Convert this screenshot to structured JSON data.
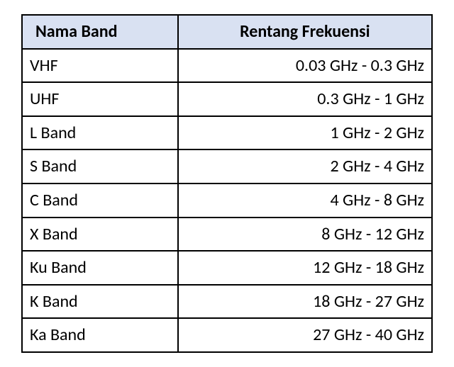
{
  "table": {
    "header_bg_color": "#d9e1f2",
    "border_color": "#000000",
    "columns": [
      {
        "label": "Nama Band"
      },
      {
        "label": "Rentang Frekuensi"
      }
    ],
    "rows": [
      {
        "name": "VHF",
        "freq": "0.03 GHz - 0.3 GHz"
      },
      {
        "name": "UHF",
        "freq": "0.3 GHz - 1 GHz"
      },
      {
        "name": "L Band",
        "freq": "1 GHz - 2 GHz"
      },
      {
        "name": "S Band",
        "freq": "2 GHz - 4 GHz"
      },
      {
        "name": "C Band",
        "freq": "4 GHz - 8 GHz"
      },
      {
        "name": "X Band",
        "freq": "8 GHz - 12 GHz"
      },
      {
        "name": "Ku Band",
        "freq": "12 GHz - 18 GHz"
      },
      {
        "name": "K Band",
        "freq": "18 GHz - 27 GHz"
      },
      {
        "name": "Ka Band",
        "freq": "27 GHz - 40 GHz"
      }
    ]
  }
}
